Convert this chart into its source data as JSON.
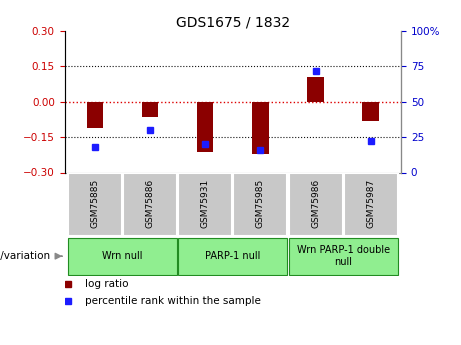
{
  "title": "GDS1675 / 1832",
  "samples": [
    "GSM75885",
    "GSM75886",
    "GSM75931",
    "GSM75985",
    "GSM75986",
    "GSM75987"
  ],
  "log_ratio": [
    -0.11,
    -0.065,
    -0.215,
    -0.22,
    0.105,
    -0.08
  ],
  "percentile_rank": [
    18,
    30,
    20,
    16,
    72,
    22
  ],
  "ylim_left": [
    -0.3,
    0.3
  ],
  "ylim_right": [
    0,
    100
  ],
  "yticks_left": [
    -0.3,
    -0.15,
    0,
    0.15,
    0.3
  ],
  "yticks_right": [
    0,
    25,
    50,
    75,
    100
  ],
  "bar_color": "#8B0000",
  "dot_color": "#1C1CFF",
  "zero_line_color": "#DD0000",
  "grid_line_color": "#111111",
  "left_tick_color": "#CC0000",
  "right_tick_color": "#0000CC",
  "bg_color": "#ffffff",
  "tick_label_bg": "#C8C8C8",
  "tick_label_sep": "#ffffff",
  "group_color": "#90EE90",
  "group_border": "#228B22",
  "group_configs": [
    {
      "label": "Wrn null",
      "start": 0,
      "end": 1
    },
    {
      "label": "PARP-1 null",
      "start": 2,
      "end": 3
    },
    {
      "label": "Wrn PARP-1 double\nnull",
      "start": 4,
      "end": 5
    }
  ],
  "legend_items": [
    {
      "label": "log ratio",
      "color": "#8B0000"
    },
    {
      "label": "percentile rank within the sample",
      "color": "#1C1CFF"
    }
  ],
  "bar_width": 0.3,
  "dot_size": 5,
  "title_fontsize": 10,
  "tick_fontsize": 7.5,
  "sample_fontsize": 6.5,
  "group_fontsize": 7,
  "legend_fontsize": 7.5,
  "genotype_fontsize": 7.5
}
